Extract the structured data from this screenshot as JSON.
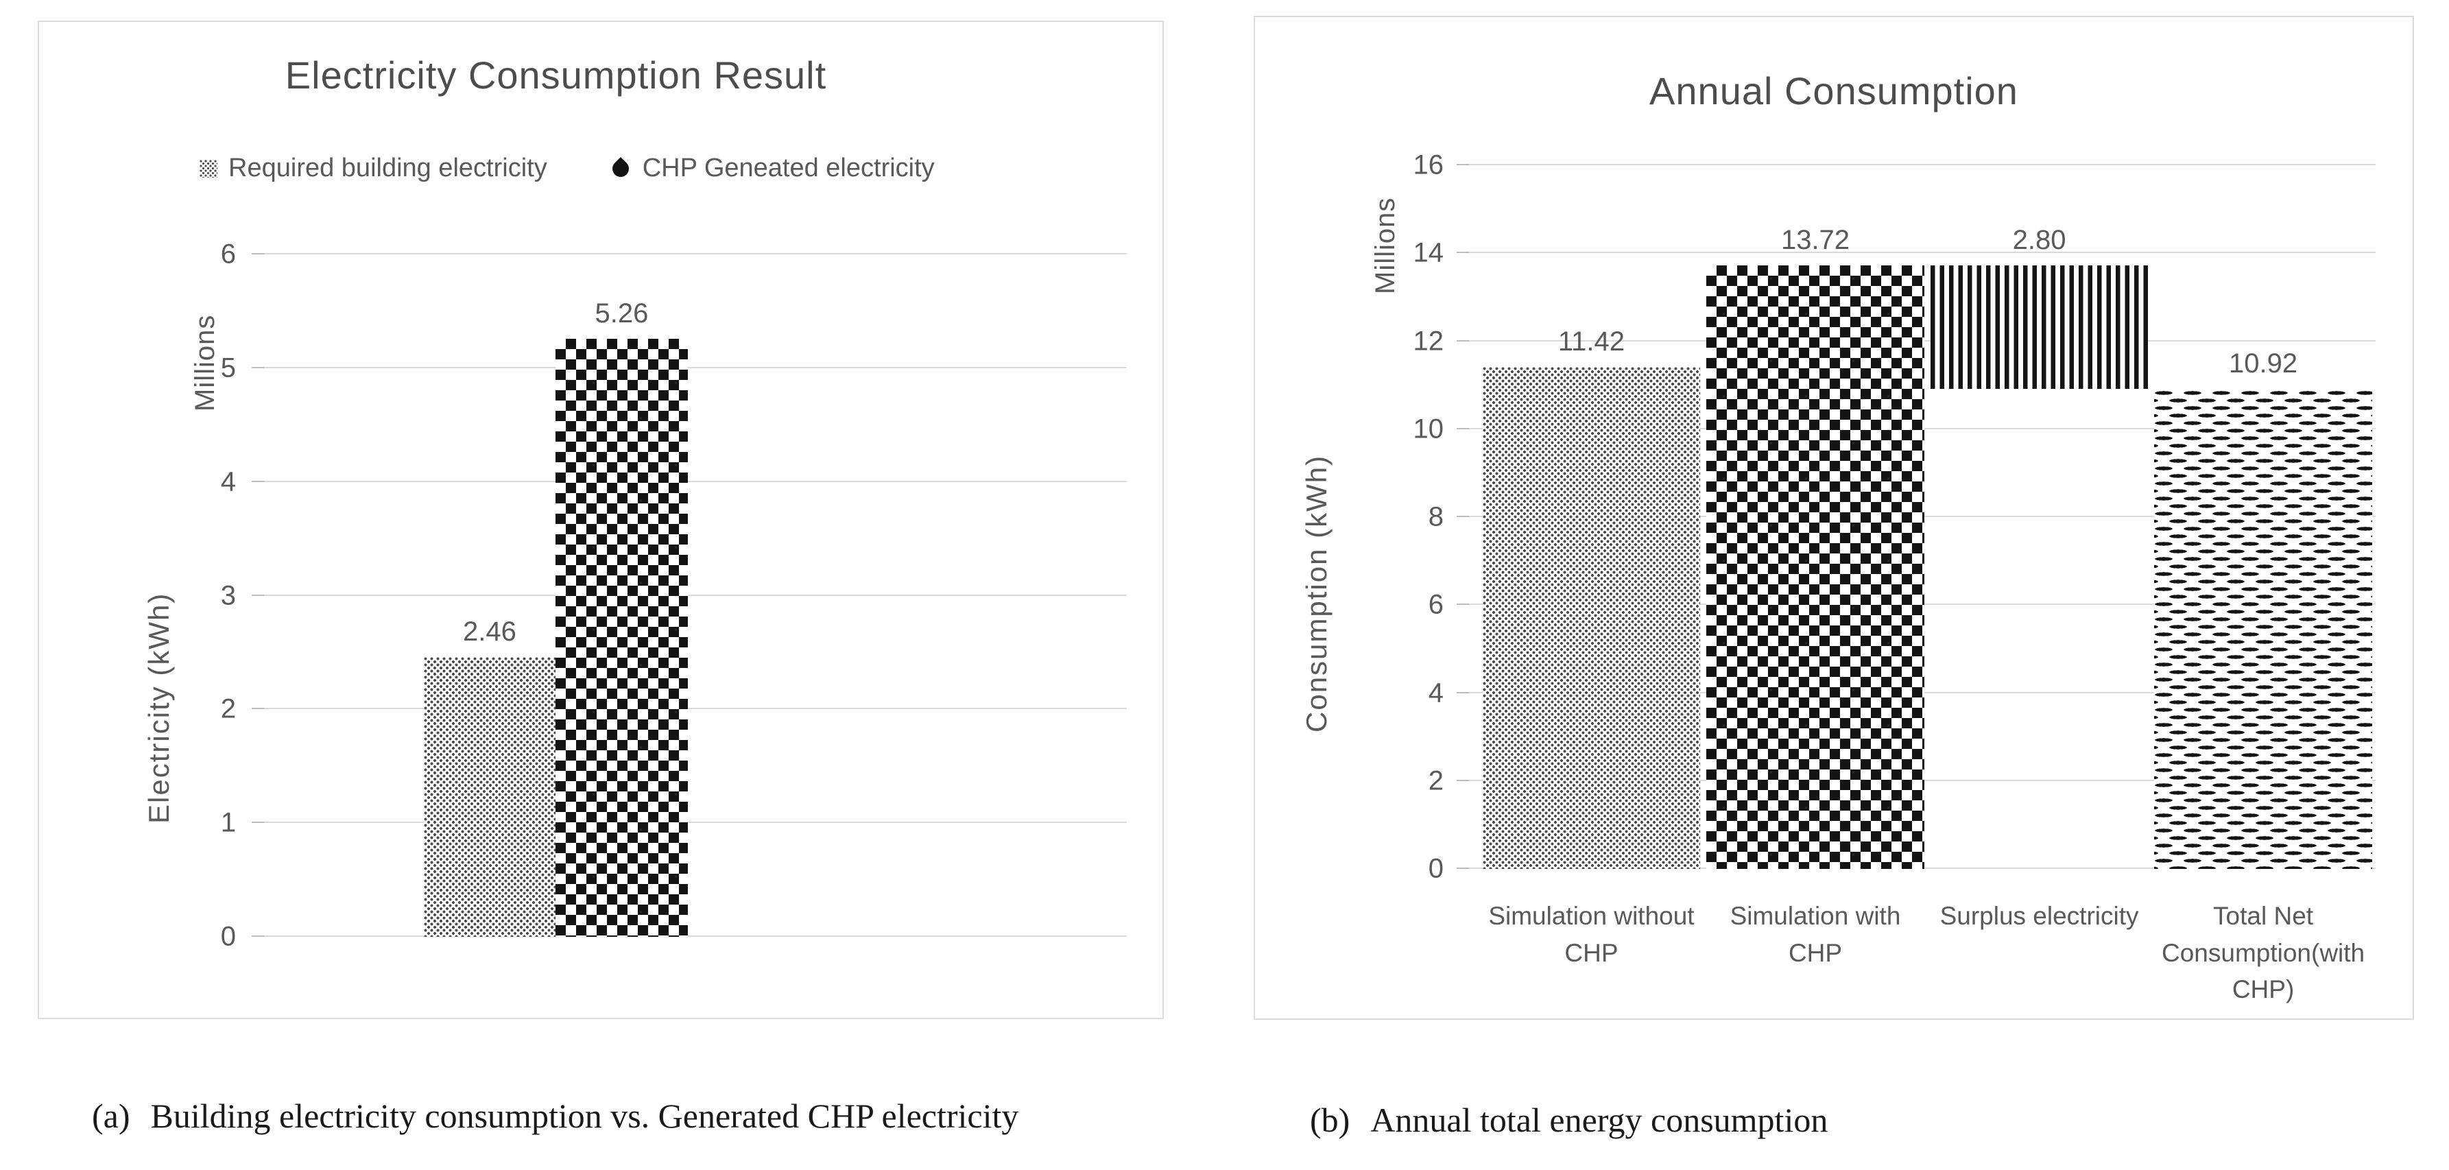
{
  "captions": [
    {
      "prefix": "(a)",
      "text": "Building electricity consumption vs. Generated CHP electricity"
    },
    {
      "prefix": "(b)",
      "text": "Annual total energy consumption"
    }
  ],
  "chart_data": [
    {
      "type": "bar",
      "title": "Electricity Consumption Result",
      "ylabel": "Electricity (kWh)",
      "y_units_label": "Millions",
      "xlabel": "",
      "ylim": [
        0,
        6
      ],
      "yticks": [
        0,
        1,
        2,
        3,
        4,
        5,
        6
      ],
      "grid": true,
      "legend_position": "top",
      "categories": [],
      "series": [
        {
          "name": "Required building electricity",
          "pattern": "dots",
          "base": 0,
          "value": 2.46,
          "data_label": "2.46"
        },
        {
          "name": "CHP Geneated electricity",
          "pattern": "diamonds",
          "base": 0,
          "value": 5.26,
          "data_label": "5.26"
        }
      ]
    },
    {
      "type": "bar",
      "title": "Annual Consumption",
      "ylabel": "Consumption (kWh)",
      "y_units_label": "Millions",
      "xlabel": "",
      "ylim": [
        0,
        16
      ],
      "yticks": [
        0,
        2,
        4,
        6,
        8,
        10,
        12,
        14,
        16
      ],
      "grid": true,
      "legend_position": "none",
      "categories": [
        "Simulation without CHP",
        "Simulation with CHP",
        "Surplus electricity",
        "Total Net Consumption(with CHP)"
      ],
      "series": [
        {
          "name": "Simulation without CHP",
          "pattern": "dots",
          "base": 0,
          "value": 11.42,
          "data_label": "11.42"
        },
        {
          "name": "Simulation with CHP",
          "pattern": "diamonds",
          "base": 0,
          "value": 13.72,
          "data_label": "13.72"
        },
        {
          "name": "Surplus electricity",
          "pattern": "vstripes",
          "base": 10.92,
          "value": 2.8,
          "data_label": "2.80"
        },
        {
          "name": "Total Net Consumption(with CHP)",
          "pattern": "hdashes",
          "base": 0,
          "value": 10.92,
          "data_label": "10.92"
        }
      ]
    }
  ]
}
